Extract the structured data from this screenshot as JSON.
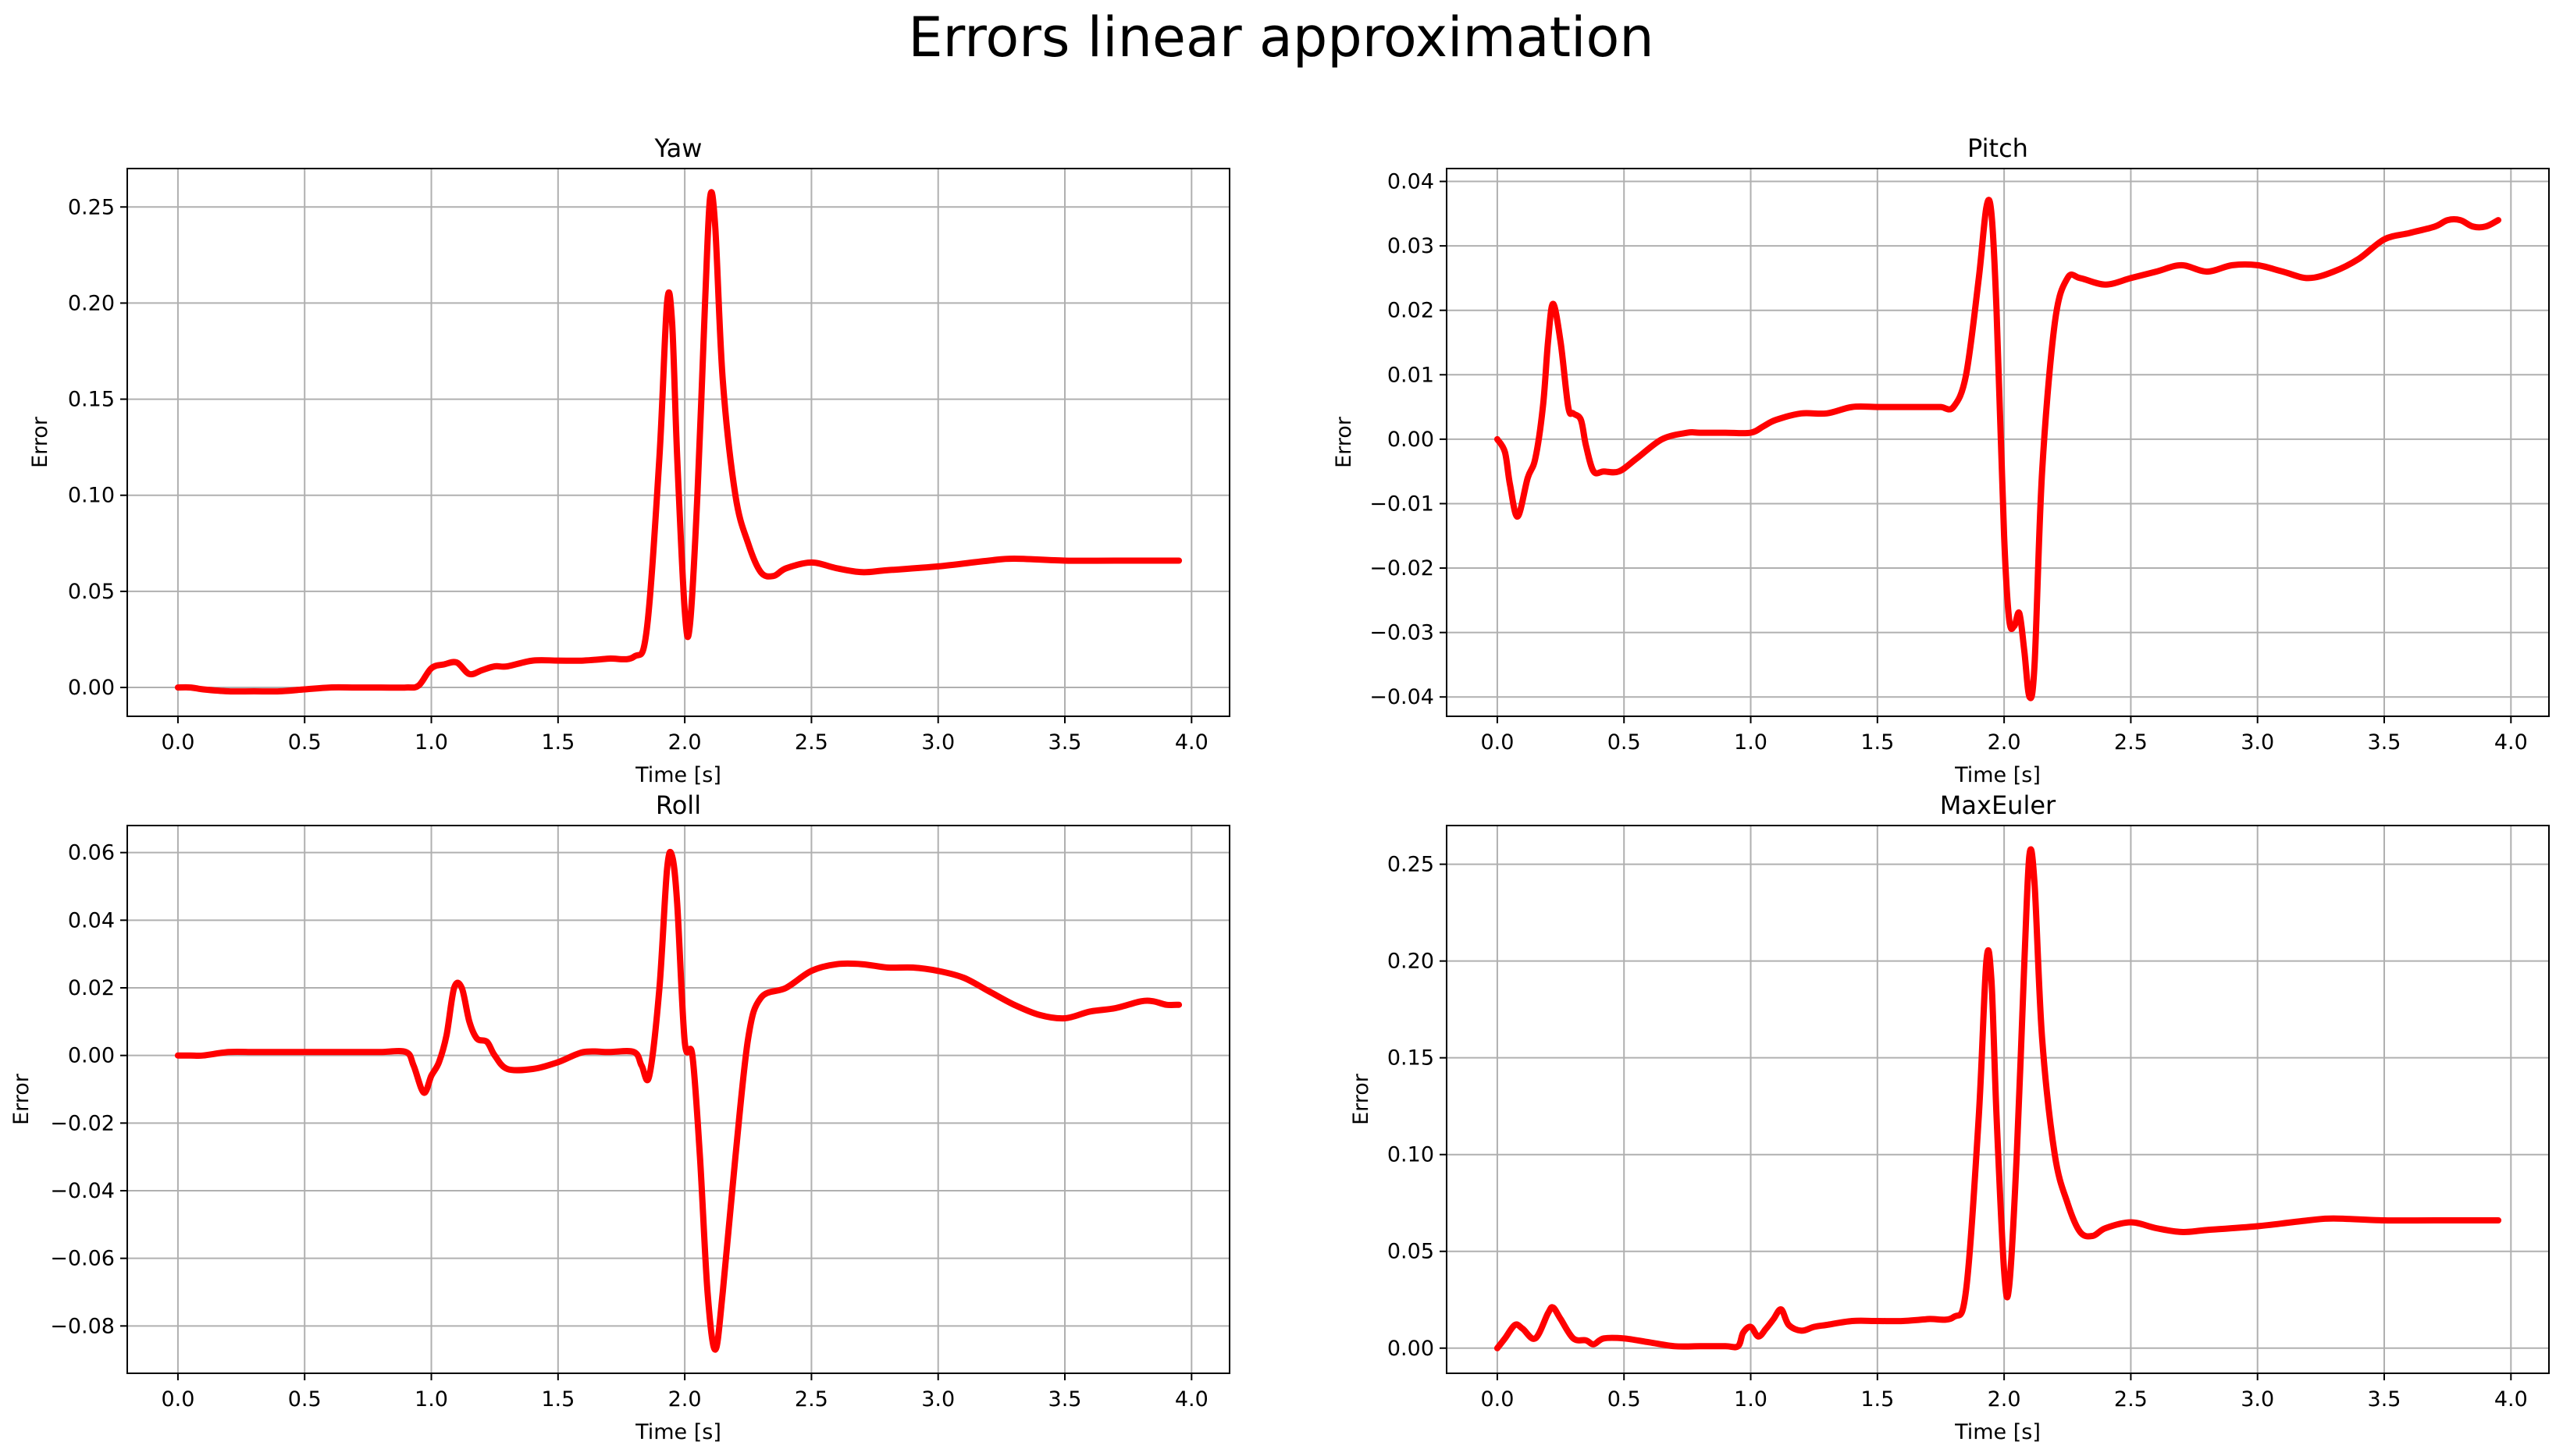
{
  "figure": {
    "title": "Errors linear approximation"
  },
  "colors": {
    "series": "#ff0000",
    "grid": "#b0b0b0",
    "axis": "#000000"
  },
  "chart_data": [
    {
      "type": "line",
      "title": "Yaw",
      "xlabel": "Time [s]",
      "ylabel": "Error",
      "xlim": [
        -0.2,
        4.15
      ],
      "ylim": [
        -0.015,
        0.27
      ],
      "xticks": [
        0.0,
        0.5,
        1.0,
        1.5,
        2.0,
        2.5,
        3.0,
        3.5,
        4.0
      ],
      "yticks": [
        0.0,
        0.05,
        0.1,
        0.15,
        0.2,
        0.25
      ],
      "xtick_labels": [
        "0.0",
        "0.5",
        "1.0",
        "1.5",
        "2.0",
        "2.5",
        "3.0",
        "3.5",
        "4.0"
      ],
      "ytick_labels": [
        "0.00",
        "0.05",
        "0.10",
        "0.15",
        "0.20",
        "0.25"
      ],
      "grid": true,
      "series": [
        {
          "x": [
            0.0,
            0.05,
            0.1,
            0.2,
            0.3,
            0.4,
            0.5,
            0.6,
            0.7,
            0.8,
            0.9,
            0.95,
            1.0,
            1.05,
            1.1,
            1.15,
            1.2,
            1.25,
            1.3,
            1.4,
            1.5,
            1.6,
            1.7,
            1.8,
            1.85,
            1.9,
            1.93,
            1.95,
            1.97,
            2.0,
            2.02,
            2.05,
            2.08,
            2.1,
            2.12,
            2.15,
            2.2,
            2.25,
            2.3,
            2.35,
            2.4,
            2.5,
            2.6,
            2.7,
            2.8,
            3.0,
            3.2,
            3.3,
            3.5,
            3.7,
            3.95
          ],
          "y": [
            0.0,
            0.0,
            -0.001,
            -0.002,
            -0.002,
            -0.002,
            -0.001,
            0.0,
            0.0,
            0.0,
            0.0,
            0.001,
            0.01,
            0.012,
            0.013,
            0.007,
            0.009,
            0.011,
            0.011,
            0.014,
            0.014,
            0.014,
            0.015,
            0.016,
            0.03,
            0.12,
            0.2,
            0.19,
            0.12,
            0.04,
            0.032,
            0.1,
            0.2,
            0.255,
            0.24,
            0.16,
            0.1,
            0.075,
            0.06,
            0.058,
            0.062,
            0.065,
            0.062,
            0.06,
            0.061,
            0.063,
            0.066,
            0.067,
            0.066,
            0.066,
            0.066
          ]
        }
      ]
    },
    {
      "type": "line",
      "title": "Pitch",
      "xlabel": "Time [s]",
      "ylabel": "Error",
      "xlim": [
        -0.2,
        4.15
      ],
      "ylim": [
        -0.043,
        0.042
      ],
      "xticks": [
        0.0,
        0.5,
        1.0,
        1.5,
        2.0,
        2.5,
        3.0,
        3.5,
        4.0
      ],
      "yticks": [
        -0.04,
        -0.03,
        -0.02,
        -0.01,
        0.0,
        0.01,
        0.02,
        0.03,
        0.04
      ],
      "xtick_labels": [
        "0.0",
        "0.5",
        "1.0",
        "1.5",
        "2.0",
        "2.5",
        "3.0",
        "3.5",
        "4.0"
      ],
      "ytick_labels": [
        "−0.04",
        "−0.03",
        "−0.02",
        "−0.01",
        "0.00",
        "0.01",
        "0.02",
        "0.03",
        "0.04"
      ],
      "grid": true,
      "series": [
        {
          "x": [
            0.0,
            0.03,
            0.05,
            0.08,
            0.12,
            0.15,
            0.18,
            0.2,
            0.22,
            0.25,
            0.28,
            0.3,
            0.33,
            0.35,
            0.38,
            0.42,
            0.48,
            0.55,
            0.65,
            0.75,
            0.8,
            0.9,
            1.0,
            1.05,
            1.1,
            1.2,
            1.3,
            1.4,
            1.5,
            1.6,
            1.65,
            1.7,
            1.75,
            1.8,
            1.85,
            1.9,
            1.93,
            1.95,
            1.97,
            2.0,
            2.02,
            2.04,
            2.06,
            2.08,
            2.1,
            2.12,
            2.15,
            2.2,
            2.25,
            2.3,
            2.4,
            2.5,
            2.6,
            2.7,
            2.8,
            2.9,
            3.0,
            3.1,
            3.2,
            3.3,
            3.4,
            3.5,
            3.6,
            3.7,
            3.75,
            3.8,
            3.85,
            3.9,
            3.95
          ],
          "y": [
            0.0,
            -0.002,
            -0.007,
            -0.012,
            -0.006,
            -0.003,
            0.005,
            0.015,
            0.021,
            0.015,
            0.005,
            0.004,
            0.003,
            -0.001,
            -0.005,
            -0.005,
            -0.005,
            -0.003,
            0.0,
            0.001,
            0.001,
            0.001,
            0.001,
            0.002,
            0.003,
            0.004,
            0.004,
            0.005,
            0.005,
            0.005,
            0.005,
            0.005,
            0.005,
            0.005,
            0.01,
            0.025,
            0.036,
            0.035,
            0.02,
            -0.015,
            -0.028,
            -0.029,
            -0.027,
            -0.033,
            -0.04,
            -0.035,
            -0.005,
            0.018,
            0.025,
            0.025,
            0.024,
            0.025,
            0.026,
            0.027,
            0.026,
            0.027,
            0.027,
            0.026,
            0.025,
            0.026,
            0.028,
            0.031,
            0.032,
            0.033,
            0.034,
            0.034,
            0.033,
            0.033,
            0.034
          ]
        }
      ]
    },
    {
      "type": "line",
      "title": "Roll",
      "xlabel": "Time [s]",
      "ylabel": "Error",
      "xlim": [
        -0.2,
        4.15
      ],
      "ylim": [
        -0.094,
        0.068
      ],
      "xticks": [
        0.0,
        0.5,
        1.0,
        1.5,
        2.0,
        2.5,
        3.0,
        3.5,
        4.0
      ],
      "yticks": [
        -0.08,
        -0.06,
        -0.04,
        -0.02,
        0.0,
        0.02,
        0.04,
        0.06
      ],
      "xtick_labels": [
        "0.0",
        "0.5",
        "1.0",
        "1.5",
        "2.0",
        "2.5",
        "3.0",
        "3.5",
        "4.0"
      ],
      "ytick_labels": [
        "−0.08",
        "−0.06",
        "−0.04",
        "−0.02",
        "0.00",
        "0.02",
        "0.04",
        "0.06"
      ],
      "grid": true,
      "series": [
        {
          "x": [
            0.0,
            0.05,
            0.1,
            0.2,
            0.3,
            0.4,
            0.5,
            0.6,
            0.7,
            0.8,
            0.9,
            0.93,
            0.97,
            1.0,
            1.03,
            1.06,
            1.09,
            1.12,
            1.15,
            1.18,
            1.22,
            1.25,
            1.3,
            1.4,
            1.5,
            1.6,
            1.7,
            1.8,
            1.83,
            1.86,
            1.9,
            1.93,
            1.95,
            1.97,
            2.0,
            2.03,
            2.06,
            2.09,
            2.12,
            2.15,
            2.2,
            2.25,
            2.3,
            2.4,
            2.5,
            2.6,
            2.7,
            2.8,
            2.9,
            3.0,
            3.1,
            3.2,
            3.3,
            3.4,
            3.5,
            3.6,
            3.7,
            3.8,
            3.85,
            3.9,
            3.95
          ],
          "y": [
            0.0,
            0.0,
            0.0,
            0.001,
            0.001,
            0.001,
            0.001,
            0.001,
            0.001,
            0.001,
            0.001,
            -0.003,
            -0.011,
            -0.006,
            -0.002,
            0.006,
            0.02,
            0.02,
            0.01,
            0.005,
            0.004,
            0.0,
            -0.004,
            -0.004,
            -0.002,
            0.001,
            0.001,
            0.001,
            -0.003,
            -0.006,
            0.02,
            0.055,
            0.059,
            0.045,
            0.004,
            0.0,
            -0.03,
            -0.07,
            -0.087,
            -0.07,
            -0.03,
            0.005,
            0.017,
            0.02,
            0.025,
            0.027,
            0.027,
            0.026,
            0.026,
            0.025,
            0.023,
            0.019,
            0.015,
            0.012,
            0.011,
            0.013,
            0.014,
            0.016,
            0.016,
            0.015,
            0.015
          ]
        }
      ]
    },
    {
      "type": "line",
      "title": "MaxEuler",
      "xlabel": "Time [s]",
      "ylabel": "Error",
      "xlim": [
        -0.2,
        4.15
      ],
      "ylim": [
        -0.013,
        0.27
      ],
      "xticks": [
        0.0,
        0.5,
        1.0,
        1.5,
        2.0,
        2.5,
        3.0,
        3.5,
        4.0
      ],
      "yticks": [
        0.0,
        0.05,
        0.1,
        0.15,
        0.2,
        0.25
      ],
      "xtick_labels": [
        "0.0",
        "0.5",
        "1.0",
        "1.5",
        "2.0",
        "2.5",
        "3.0",
        "3.5",
        "4.0"
      ],
      "ytick_labels": [
        "0.00",
        "0.05",
        "0.10",
        "0.15",
        "0.20",
        "0.25"
      ],
      "grid": true,
      "series": [
        {
          "x": [
            0.0,
            0.03,
            0.07,
            0.1,
            0.15,
            0.2,
            0.22,
            0.25,
            0.3,
            0.35,
            0.38,
            0.42,
            0.5,
            0.6,
            0.7,
            0.8,
            0.9,
            0.95,
            0.97,
            1.0,
            1.03,
            1.06,
            1.09,
            1.12,
            1.15,
            1.2,
            1.25,
            1.3,
            1.4,
            1.5,
            1.6,
            1.7,
            1.8,
            1.85,
            1.9,
            1.93,
            1.95,
            1.97,
            2.0,
            2.02,
            2.05,
            2.08,
            2.1,
            2.12,
            2.15,
            2.2,
            2.25,
            2.3,
            2.35,
            2.4,
            2.5,
            2.6,
            2.7,
            2.8,
            3.0,
            3.2,
            3.3,
            3.5,
            3.7,
            3.95
          ],
          "y": [
            0.0,
            0.005,
            0.012,
            0.01,
            0.005,
            0.018,
            0.021,
            0.015,
            0.005,
            0.004,
            0.002,
            0.005,
            0.005,
            0.003,
            0.001,
            0.001,
            0.001,
            0.001,
            0.008,
            0.011,
            0.006,
            0.01,
            0.015,
            0.02,
            0.012,
            0.009,
            0.011,
            0.012,
            0.014,
            0.014,
            0.014,
            0.015,
            0.016,
            0.03,
            0.12,
            0.2,
            0.19,
            0.12,
            0.04,
            0.032,
            0.1,
            0.2,
            0.255,
            0.24,
            0.16,
            0.1,
            0.075,
            0.06,
            0.058,
            0.062,
            0.065,
            0.062,
            0.06,
            0.061,
            0.063,
            0.066,
            0.067,
            0.066,
            0.066,
            0.066
          ]
        }
      ]
    }
  ]
}
